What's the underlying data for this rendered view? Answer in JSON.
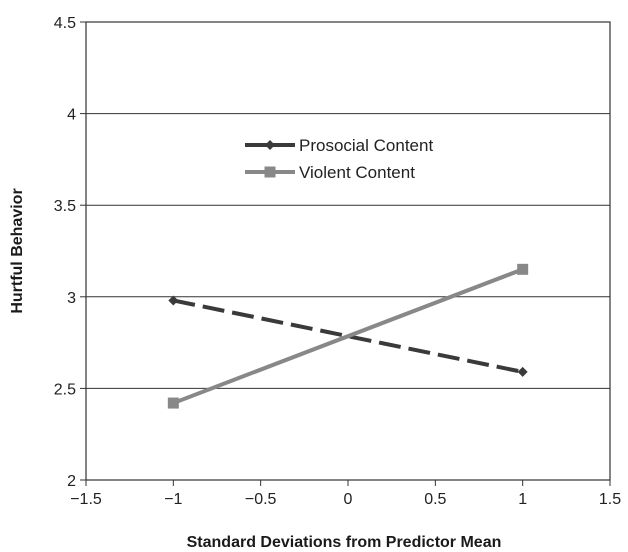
{
  "chart_data": {
    "type": "line",
    "title": "",
    "xlabel": "Standard Deviations from Predictor Mean",
    "ylabel": "Hurtful Behavior",
    "xlim": [
      -1.5,
      1.5
    ],
    "ylim": [
      2,
      4.5
    ],
    "x_ticks": [
      -1.5,
      -1,
      -0.5,
      0,
      0.5,
      1,
      1.5
    ],
    "x_tick_labels": [
      "−1.5",
      "−1",
      "−0.5",
      "0",
      "0.5",
      "1",
      "1.5"
    ],
    "y_ticks": [
      2,
      2.5,
      3,
      3.5,
      4,
      4.5
    ],
    "y_tick_labels": [
      "2",
      "2.5",
      "3",
      "3.5",
      "4",
      "4.5"
    ],
    "grid": "horizontal",
    "legend_position": "upper-center",
    "series": [
      {
        "name": "Prosocial Content",
        "x": [
          -1,
          1
        ],
        "y": [
          2.98,
          2.59
        ],
        "marker": "diamond",
        "line_style": "dashed",
        "color": "#3a3a3a"
      },
      {
        "name": "Violent Content",
        "x": [
          -1,
          1
        ],
        "y": [
          2.42,
          3.15
        ],
        "marker": "square",
        "line_style": "solid",
        "color": "#888888"
      }
    ]
  }
}
